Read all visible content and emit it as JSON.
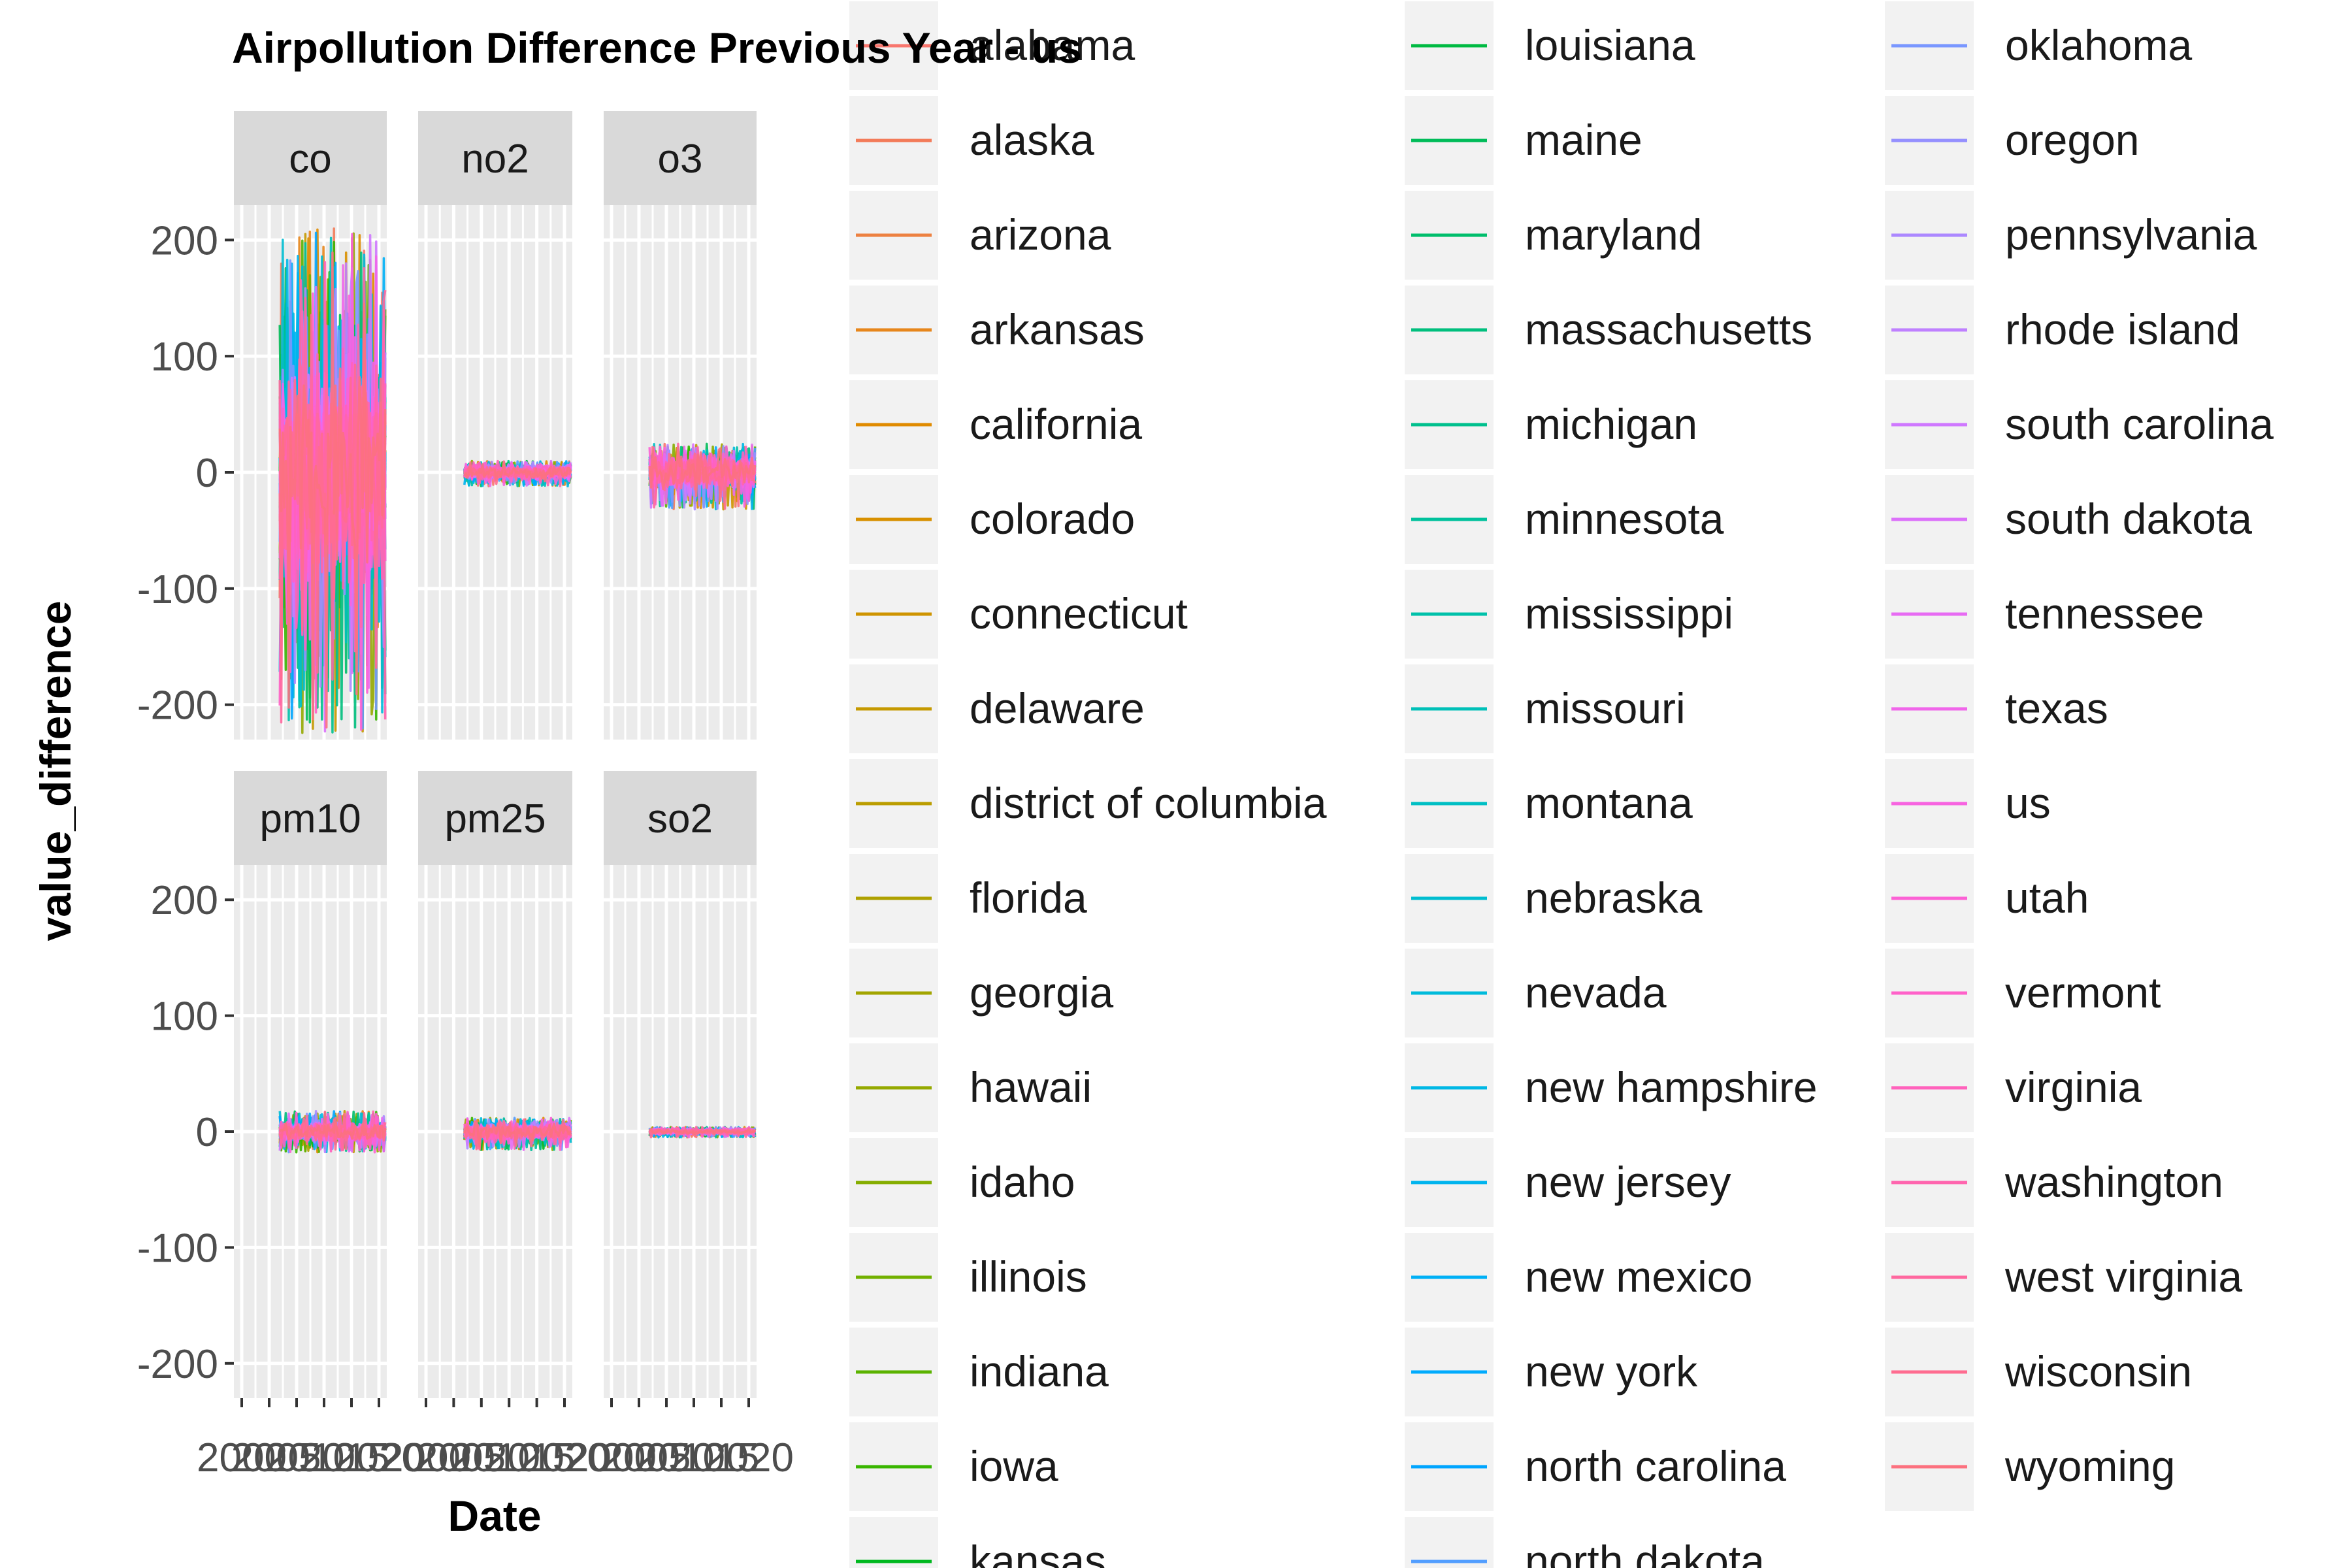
{
  "chart_data": {
    "type": "line",
    "title": "Airpollution Difference Previous Year - us",
    "xlabel": "Date",
    "ylabel": "value_difference",
    "ylim": [
      -230,
      230
    ],
    "yticks": [
      -200,
      -100,
      0,
      100,
      200
    ],
    "grid": true,
    "legend_placement": "right",
    "x_tick_text": "2000 … 2020 (overlapping, illegible)",
    "facets": [
      {
        "label": "co",
        "range": [
          -225,
          210
        ],
        "typical": 85
      },
      {
        "label": "no2",
        "range": [
          -12,
          10
        ],
        "typical": 5
      },
      {
        "label": "o3",
        "range": [
          -32,
          25
        ],
        "typical": 12
      },
      {
        "label": "pm10",
        "range": [
          -18,
          18
        ],
        "typical": 7
      },
      {
        "label": "pm25",
        "range": [
          -16,
          12
        ],
        "typical": 6
      },
      {
        "label": "so2",
        "range": [
          -5,
          4
        ],
        "typical": 2
      }
    ],
    "series": [
      {
        "name": "alabama"
      },
      {
        "name": "alaska"
      },
      {
        "name": "arizona"
      },
      {
        "name": "arkansas"
      },
      {
        "name": "california"
      },
      {
        "name": "colorado"
      },
      {
        "name": "connecticut"
      },
      {
        "name": "delaware"
      },
      {
        "name": "district of columbia"
      },
      {
        "name": "florida"
      },
      {
        "name": "georgia"
      },
      {
        "name": "hawaii"
      },
      {
        "name": "idaho"
      },
      {
        "name": "illinois"
      },
      {
        "name": "indiana"
      },
      {
        "name": "iowa"
      },
      {
        "name": "kansas"
      },
      {
        "name": "louisiana"
      },
      {
        "name": "maine"
      },
      {
        "name": "maryland"
      },
      {
        "name": "massachusetts"
      },
      {
        "name": "michigan"
      },
      {
        "name": "minnesota"
      },
      {
        "name": "mississippi"
      },
      {
        "name": "missouri"
      },
      {
        "name": "montana"
      },
      {
        "name": "nebraska"
      },
      {
        "name": "nevada"
      },
      {
        "name": "new hampshire"
      },
      {
        "name": "new jersey"
      },
      {
        "name": "new mexico"
      },
      {
        "name": "new york"
      },
      {
        "name": "north carolina"
      },
      {
        "name": "north dakota"
      },
      {
        "name": "oklahoma"
      },
      {
        "name": "oregon"
      },
      {
        "name": "pennsylvania"
      },
      {
        "name": "rhode island"
      },
      {
        "name": "south carolina"
      },
      {
        "name": "south dakota"
      },
      {
        "name": "tennessee"
      },
      {
        "name": "texas"
      },
      {
        "name": "us"
      },
      {
        "name": "utah"
      },
      {
        "name": "vermont"
      },
      {
        "name": "virginia"
      },
      {
        "name": "washington"
      },
      {
        "name": "west virginia"
      },
      {
        "name": "wisconsin"
      },
      {
        "name": "wyoming"
      }
    ],
    "legend_columns": [
      17,
      17,
      16
    ]
  }
}
